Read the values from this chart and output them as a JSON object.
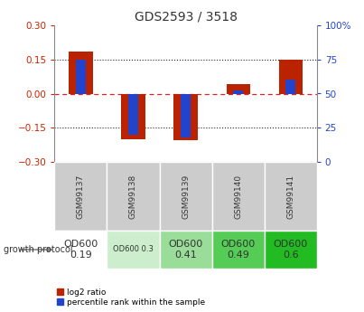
{
  "title": "GDS2593 / 3518",
  "samples": [
    "GSM99137",
    "GSM99138",
    "GSM99139",
    "GSM99140",
    "GSM99141"
  ],
  "log2_ratio": [
    0.185,
    -0.2,
    -0.205,
    0.04,
    0.148
  ],
  "percentile_rank_raw": [
    75,
    20,
    18,
    52,
    60
  ],
  "ylim_left": [
    -0.3,
    0.3
  ],
  "ylim_right": [
    0,
    100
  ],
  "yticks_left": [
    -0.3,
    -0.15,
    0.0,
    0.15,
    0.3
  ],
  "yticks_right": [
    0,
    25,
    50,
    75,
    100
  ],
  "bar_color_red": "#bb2200",
  "bar_color_blue": "#2244cc",
  "hline_zero_color": "#dd2222",
  "hline_dotted_color": "#222222",
  "growth_protocol_labels": [
    "OD600\n0.19",
    "OD600 0.3",
    "OD600\n0.41",
    "OD600\n0.49",
    "OD600\n0.6"
  ],
  "growth_protocol_bg": [
    "#ffffff",
    "#cceecc",
    "#99dd99",
    "#55cc55",
    "#22bb22"
  ],
  "growth_protocol_fontsize": [
    8,
    6,
    8,
    8,
    8
  ],
  "sample_row_color": "#cccccc",
  "plot_bg": "#ffffff",
  "right_axis_color": "#2244cc",
  "left_axis_color": "#cc2200"
}
